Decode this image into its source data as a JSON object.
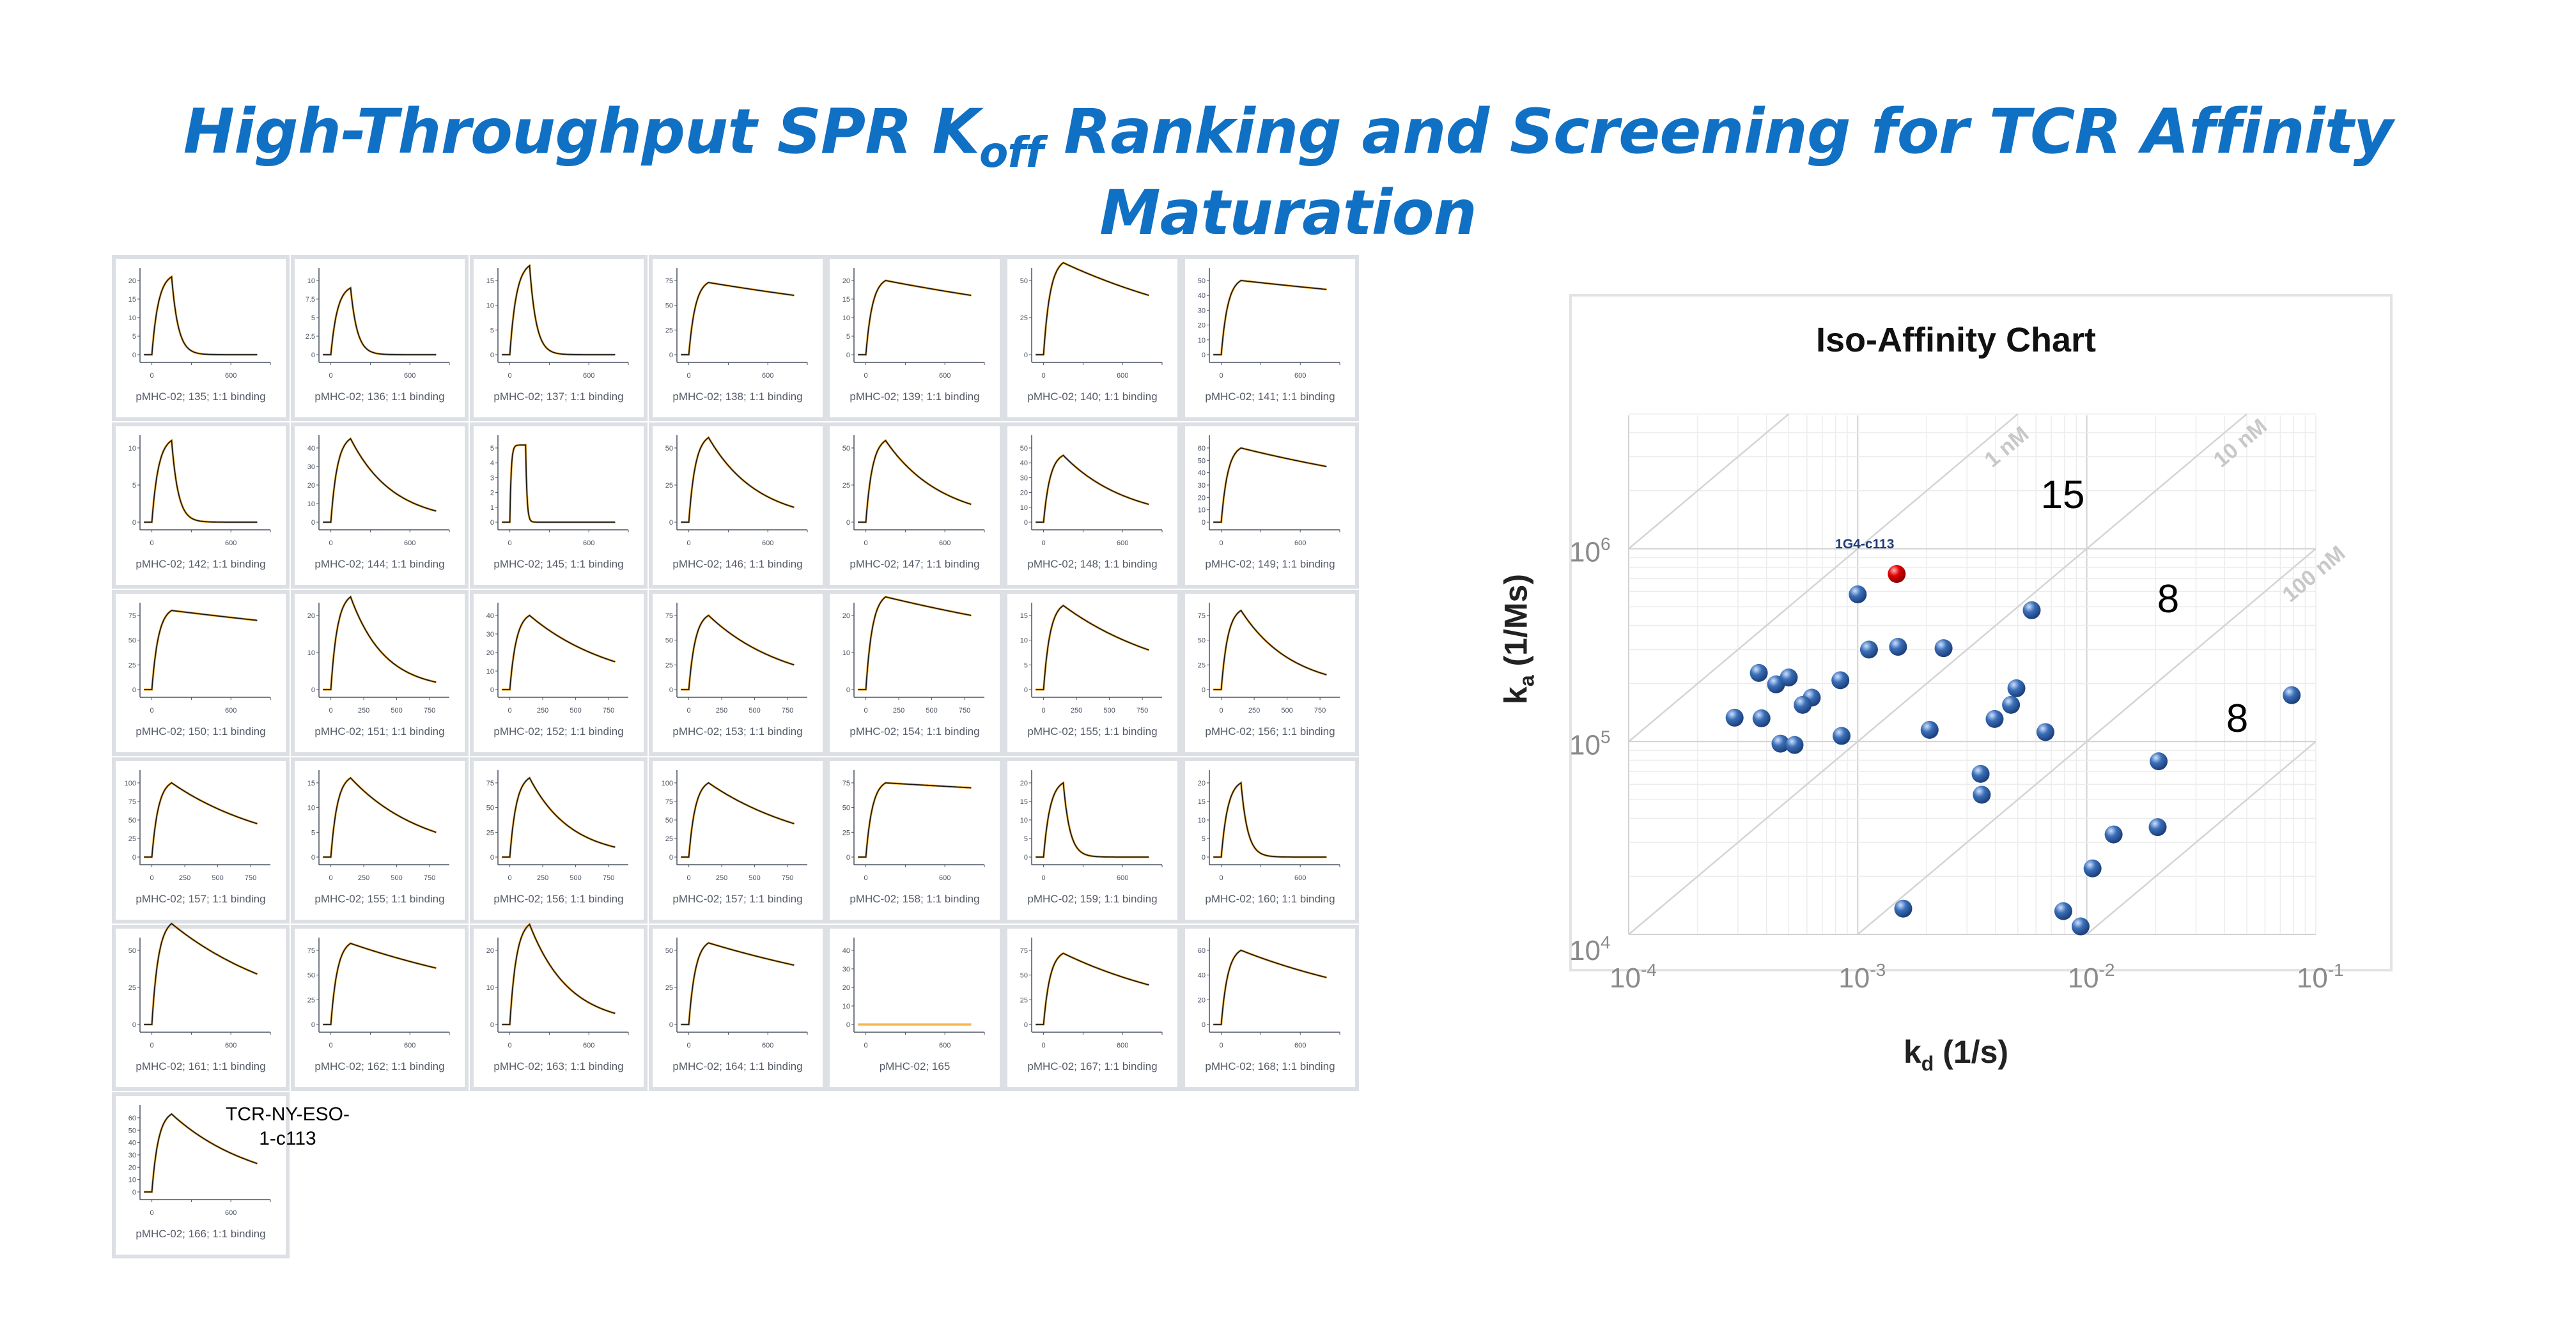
{
  "title": {
    "main": "High-Throughput SPR K",
    "sub": "off",
    "rest": " Ranking and Screening for TCR Affinity Maturation"
  },
  "colors": {
    "title": "#1070C4",
    "fit": "#1a1a1a",
    "data": "#f5a623",
    "point": "#3a6fb8",
    "highlight": "#e00000",
    "highlight_label": "#1f3a78"
  },
  "sensorgrams": [
    {
      "label": "pMHC-02; 135; 1:1 binding",
      "yticks": [
        0,
        5,
        10,
        15,
        20
      ],
      "xticks": [
        0,
        600
      ],
      "peak": 21,
      "end": 0
    },
    {
      "label": "pMHC-02; 136; 1:1 binding",
      "yticks": [
        0,
        2.5,
        5,
        7.5,
        10
      ],
      "xticks": [
        0,
        600
      ],
      "peak": 9,
      "end": 0.2
    },
    {
      "label": "pMHC-02; 137; 1:1 binding",
      "yticks": [
        0,
        5,
        10,
        15
      ],
      "xticks": [
        0,
        600
      ],
      "peak": 18,
      "end": 0.4
    },
    {
      "label": "pMHC-02; 138; 1:1 binding",
      "yticks": [
        0,
        25,
        50,
        75
      ],
      "xticks": [
        0,
        600
      ],
      "peak": 73,
      "end": 60
    },
    {
      "label": "pMHC-02; 139; 1:1 binding",
      "yticks": [
        0,
        5,
        10,
        15,
        20
      ],
      "xticks": [
        0,
        600
      ],
      "peak": 20,
      "end": 16
    },
    {
      "label": "pMHC-02; 140; 1:1 binding",
      "yticks": [
        0,
        25,
        50
      ],
      "xticks": [
        0,
        600
      ],
      "peak": 62,
      "end": 40
    },
    {
      "label": "pMHC-02; 141; 1:1 binding",
      "yticks": [
        0,
        10,
        20,
        30,
        40,
        50
      ],
      "xticks": [
        0,
        600
      ],
      "peak": 50,
      "end": 44
    },
    {
      "label": "pMHC-02; 142; 1:1 binding",
      "yticks": [
        0,
        5,
        10
      ],
      "xticks": [
        0,
        600
      ],
      "peak": 11,
      "end": 0
    },
    {
      "label": "pMHC-02; 144; 1:1 binding",
      "yticks": [
        0,
        10,
        20,
        30,
        40
      ],
      "xticks": [
        0,
        600
      ],
      "peak": 45,
      "end": 6
    },
    {
      "label": "pMHC-02; 145; 1:1 binding",
      "yticks": [
        0,
        1,
        2,
        3,
        4,
        5
      ],
      "xticks": [
        0,
        600
      ],
      "peak": 5.2,
      "end": 0,
      "shape": "square"
    },
    {
      "label": "pMHC-02; 146; 1:1 binding",
      "yticks": [
        0,
        25,
        50
      ],
      "xticks": [
        0,
        600
      ],
      "peak": 57,
      "end": 10
    },
    {
      "label": "pMHC-02; 147; 1:1 binding",
      "yticks": [
        0,
        25,
        50
      ],
      "xticks": [
        0,
        600
      ],
      "peak": 55,
      "end": 12
    },
    {
      "label": "pMHC-02; 148; 1:1 binding",
      "yticks": [
        0,
        10,
        20,
        30,
        40,
        50
      ],
      "xticks": [
        0,
        600
      ],
      "peak": 45,
      "end": 12
    },
    {
      "label": "pMHC-02; 149; 1:1 binding",
      "yticks": [
        0,
        10,
        20,
        30,
        40,
        50,
        60
      ],
      "xticks": [
        0,
        600
      ],
      "peak": 60,
      "end": 45
    },
    {
      "label": "pMHC-02; 150; 1:1 binding",
      "yticks": [
        0,
        25,
        50,
        75
      ],
      "xticks": [
        0,
        600
      ],
      "peak": 80,
      "end": 70
    },
    {
      "label": "pMHC-02; 151; 1:1 binding",
      "yticks": [
        0,
        10,
        20
      ],
      "xticks": [
        0,
        250,
        500,
        750
      ],
      "peak": 25,
      "end": 2
    },
    {
      "label": "pMHC-02; 152; 1:1 binding",
      "yticks": [
        0,
        10,
        20,
        30,
        40
      ],
      "xticks": [
        0,
        250,
        500,
        750
      ],
      "peak": 40,
      "end": 15
    },
    {
      "label": "pMHC-02; 153; 1:1 binding",
      "yticks": [
        0,
        25,
        50,
        75
      ],
      "xticks": [
        0,
        250,
        500,
        750
      ],
      "peak": 75,
      "end": 25
    },
    {
      "label": "pMHC-02; 154; 1:1 binding",
      "yticks": [
        0,
        10,
        20
      ],
      "xticks": [
        0,
        250,
        500,
        750
      ],
      "peak": 25,
      "end": 20
    },
    {
      "label": "pMHC-02; 155; 1:1 binding",
      "yticks": [
        0,
        5,
        10,
        15
      ],
      "xticks": [
        0,
        250,
        500,
        750
      ],
      "peak": 17,
      "end": 8
    },
    {
      "label": "pMHC-02; 156; 1:1 binding",
      "yticks": [
        0,
        25,
        50,
        75
      ],
      "xticks": [
        0,
        250,
        500,
        750
      ],
      "peak": 80,
      "end": 15
    },
    {
      "label": "pMHC-02; 157; 1:1 binding",
      "yticks": [
        0,
        25,
        50,
        75,
        100
      ],
      "xticks": [
        0,
        250,
        500,
        750
      ],
      "peak": 100,
      "end": 45
    },
    {
      "label": "pMHC-02; 155; 1:1 binding",
      "yticks": [
        0,
        5,
        10,
        15
      ],
      "xticks": [
        0,
        250,
        500,
        750
      ],
      "peak": 16,
      "end": 5
    },
    {
      "label": "pMHC-02; 156; 1:1 binding",
      "yticks": [
        0,
        25,
        50,
        75
      ],
      "xticks": [
        0,
        250,
        500,
        750
      ],
      "peak": 80,
      "end": 10
    },
    {
      "label": "pMHC-02; 157; 1:1 binding",
      "yticks": [
        0,
        25,
        50,
        75,
        100
      ],
      "xticks": [
        0,
        250,
        500,
        750
      ],
      "peak": 100,
      "end": 45
    },
    {
      "label": "pMHC-02; 158; 1:1 binding",
      "yticks": [
        0,
        25,
        50,
        75
      ],
      "xticks": [
        0,
        600
      ],
      "peak": 75,
      "end": 70
    },
    {
      "label": "pMHC-02; 159; 1:1 binding",
      "yticks": [
        0,
        5,
        10,
        15,
        20
      ],
      "xticks": [
        0,
        600
      ],
      "peak": 20,
      "end": 0
    },
    {
      "label": "pMHC-02; 160; 1:1 binding",
      "yticks": [
        0,
        5,
        10,
        15,
        20
      ],
      "xticks": [
        0,
        600
      ],
      "peak": 20,
      "end": 0
    },
    {
      "label": "pMHC-02; 161; 1:1 binding",
      "yticks": [
        0,
        25,
        50
      ],
      "xticks": [
        0,
        600
      ],
      "peak": 68,
      "end": 34
    },
    {
      "label": "pMHC-02; 162; 1:1 binding",
      "yticks": [
        0,
        25,
        50,
        75
      ],
      "xticks": [
        0,
        600
      ],
      "peak": 82,
      "end": 57
    },
    {
      "label": "pMHC-02; 163; 1:1 binding",
      "yticks": [
        0,
        10,
        20
      ],
      "xticks": [
        0,
        600
      ],
      "peak": 27,
      "end": 3
    },
    {
      "label": "pMHC-02; 164; 1:1 binding",
      "yticks": [
        0,
        25,
        50
      ],
      "xticks": [
        0,
        600
      ],
      "peak": 55,
      "end": 40
    },
    {
      "label": "pMHC-02; 165",
      "yticks": [
        0,
        10,
        20,
        30,
        40
      ],
      "xticks": [
        0,
        600
      ],
      "peak": 0,
      "end": 0,
      "shape": "flat"
    },
    {
      "label": "pMHC-02; 167; 1:1 binding",
      "yticks": [
        0,
        25,
        50,
        75
      ],
      "xticks": [
        0,
        600
      ],
      "peak": 72,
      "end": 40
    },
    {
      "label": "pMHC-02; 168; 1:1 binding",
      "yticks": [
        0,
        20,
        40,
        60
      ],
      "xticks": [
        0,
        600
      ],
      "peak": 60,
      "end": 38
    },
    {
      "label": "pMHC-02; 166; 1:1 binding",
      "yticks": [
        0,
        10,
        20,
        30,
        40,
        50,
        60
      ],
      "xticks": [
        0,
        600
      ],
      "peak": 63,
      "end": 23
    }
  ],
  "annotation": {
    "line1": "TCR-NY-ESO-",
    "line2": "1-c113"
  },
  "chart_data": {
    "type": "scatter",
    "title": "Iso-Affinity Chart",
    "xlabel": "kd (1/s)",
    "xlabel_main": "k",
    "xlabel_sub": "d",
    "xlabel_rest": " (1/s)",
    "ylabel_main": "k",
    "ylabel_sub": "a",
    "ylabel_rest": " (1/Ms)",
    "xscale": "log",
    "yscale": "log",
    "xlim": [
      0.0001,
      0.1
    ],
    "ylim": [
      10000,
      5000000
    ],
    "xtick_labels": [
      {
        "base": "10",
        "exp": "-4"
      },
      {
        "base": "10",
        "exp": "-3"
      },
      {
        "base": "10",
        "exp": "-2"
      },
      {
        "base": "10",
        "exp": "-1"
      }
    ],
    "ytick_labels": [
      {
        "base": "10",
        "exp": "4"
      },
      {
        "base": "10",
        "exp": "5"
      },
      {
        "base": "10",
        "exp": "6"
      }
    ],
    "grid": true,
    "iso_lines": [
      {
        "KD_M": 1e-10,
        "label": ""
      },
      {
        "KD_M": 1e-09,
        "label": "1 nM"
      },
      {
        "KD_M": 1e-08,
        "label": "10 nM"
      },
      {
        "KD_M": 1e-07,
        "label": "100 nM"
      },
      {
        "KD_M": 1e-06,
        "label": ""
      }
    ],
    "region_counts": [
      "15",
      "8",
      "8"
    ],
    "highlight": {
      "label": "1G4-c113",
      "kd": 0.00148,
      "ka": 740000
    },
    "points": [
      {
        "kd": 0.001,
        "ka": 580000
      },
      {
        "kd": 0.00575,
        "ka": 480000
      },
      {
        "kd": 0.00112,
        "ka": 300000
      },
      {
        "kd": 0.0015,
        "ka": 310000
      },
      {
        "kd": 0.00237,
        "ka": 305000
      },
      {
        "kd": 0.00037,
        "ka": 227000
      },
      {
        "kd": 0.00044,
        "ka": 198000
      },
      {
        "kd": 0.0005,
        "ka": 215000
      },
      {
        "kd": 0.00084,
        "ka": 208000
      },
      {
        "kd": 0.00063,
        "ka": 169000
      },
      {
        "kd": 0.000575,
        "ka": 155000
      },
      {
        "kd": 0.00029,
        "ka": 133000
      },
      {
        "kd": 0.00038,
        "ka": 132000
      },
      {
        "kd": 0.00046,
        "ka": 97500
      },
      {
        "kd": 0.00053,
        "ka": 96000
      },
      {
        "kd": 0.00085,
        "ka": 107000
      },
      {
        "kd": 0.00206,
        "ka": 115000
      },
      {
        "kd": 0.00493,
        "ka": 189000
      },
      {
        "kd": 0.00467,
        "ka": 155000
      },
      {
        "kd": 0.00396,
        "ka": 131000
      },
      {
        "kd": 0.0066,
        "ka": 112000
      },
      {
        "kd": 0.00344,
        "ka": 68000
      },
      {
        "kd": 0.00348,
        "ka": 53000
      },
      {
        "kd": 0.0785,
        "ka": 174000
      },
      {
        "kd": 0.0206,
        "ka": 79000
      },
      {
        "kd": 0.0204,
        "ka": 36000
      },
      {
        "kd": 0.0131,
        "ka": 33000
      },
      {
        "kd": 0.0106,
        "ka": 22000
      },
      {
        "kd": 0.00158,
        "ka": 13600
      },
      {
        "kd": 0.0079,
        "ka": 13200
      },
      {
        "kd": 0.0094,
        "ka": 11000
      }
    ]
  }
}
